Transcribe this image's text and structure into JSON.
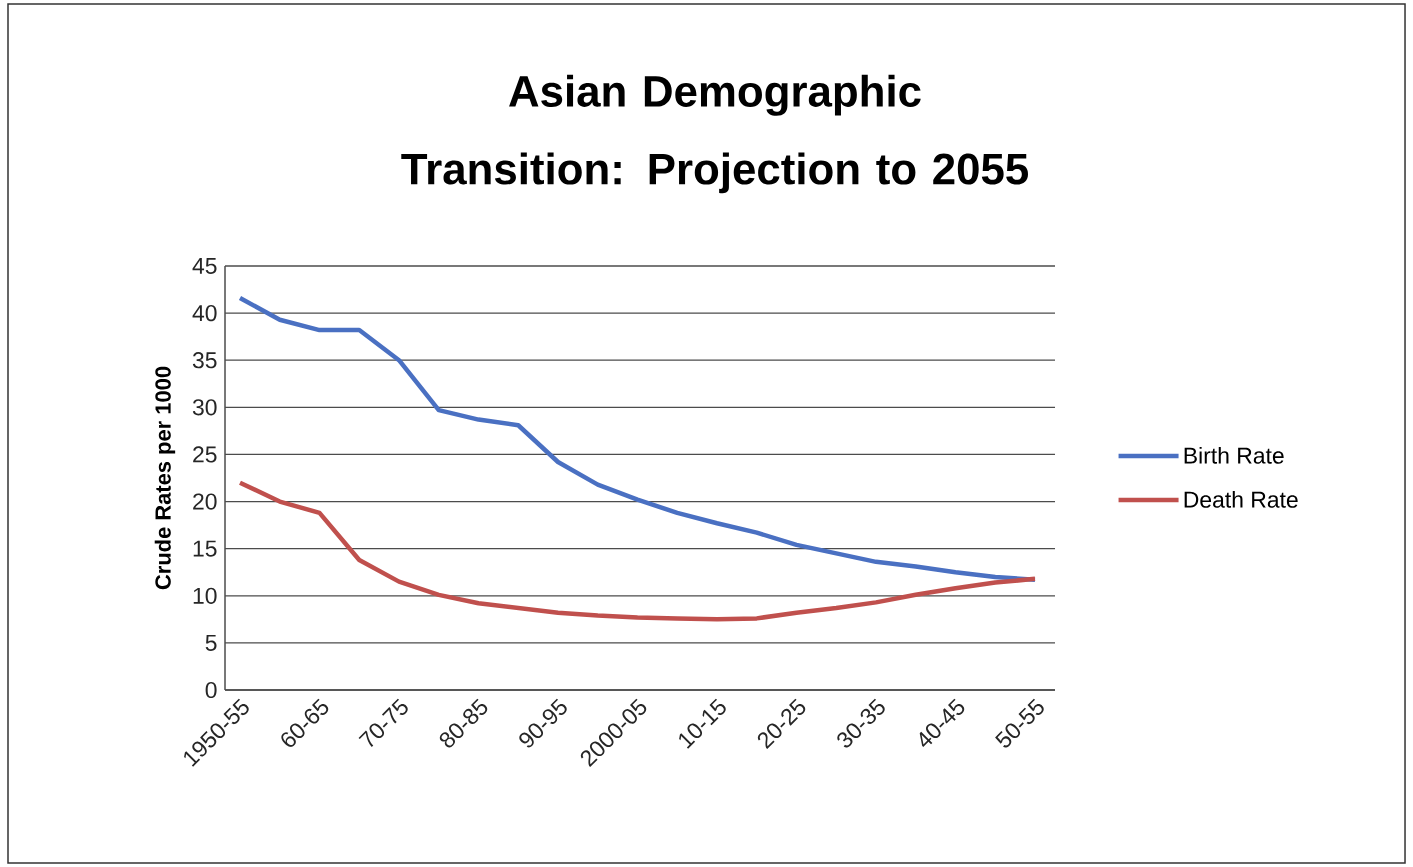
{
  "chart_data": {
    "type": "line",
    "title": "Asian Demographic Transition: Projection to 2055",
    "ylabel": "Crude Rates per 1000",
    "categories": [
      "1950-55",
      null,
      "60-65",
      null,
      "70-75",
      null,
      "80-85",
      null,
      "90-95",
      null,
      "2000-05",
      null,
      "10-15",
      null,
      "20-25",
      null,
      "30-35",
      null,
      "40-45",
      null,
      "50-55"
    ],
    "series": [
      {
        "name": "Birth Rate",
        "color": "#4a70c2",
        "values": [
          41.6,
          39.3,
          38.2,
          38.2,
          35,
          29.7,
          28.7,
          28.1,
          24.2,
          21.8,
          20.2,
          18.8,
          17.7,
          16.7,
          15.4,
          14.5,
          13.6,
          13.1,
          12.5,
          12.0,
          11.7
        ]
      },
      {
        "name": "Death Rate",
        "color": "#c0504d",
        "values": [
          22,
          20,
          18.8,
          13.8,
          11.5,
          10.1,
          9.2,
          8.7,
          8.2,
          7.9,
          7.7,
          7.6,
          7.5,
          7.6,
          8.2,
          8.7,
          9.3,
          10.1,
          10.8,
          11.4,
          11.8
        ]
      }
    ],
    "ylim": [
      0,
      45
    ],
    "yticks": [
      0,
      5,
      10,
      15,
      20,
      25,
      30,
      35,
      40,
      45
    ],
    "grid": "y",
    "legend": "right",
    "marker": "none",
    "line_style": "solid"
  }
}
